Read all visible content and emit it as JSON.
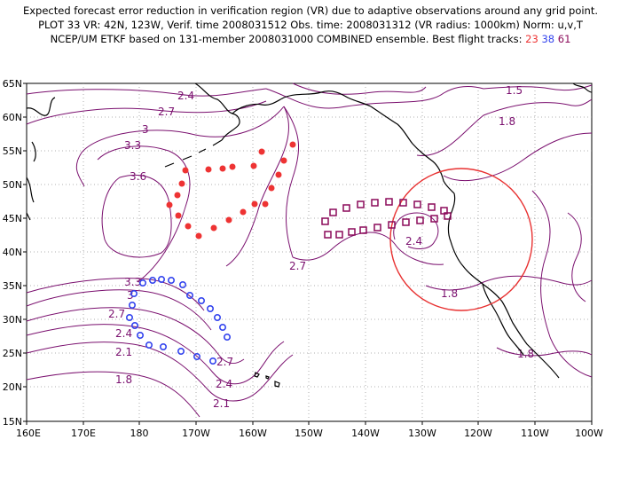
{
  "title": {
    "line1": "Expected forecast error reduction in verification region (VR) due to adaptive observations around any grid point.",
    "line2": "PLOT 33 VR: 42N, 123W, Verif. time 2008031512 Obs. time: 2008031312 (VR radius: 1000km) Norm: u,v,T",
    "line3_prefix": "NCEP/UM ETKF based on 131-member 2008031000 COMBINED ensemble.  Best flight tracks:",
    "track_a": "23",
    "track_b": "38",
    "track_c": "61"
  },
  "axes": {
    "lat_labels": [
      "65N",
      "60N",
      "55N",
      "50N",
      "45N",
      "40N",
      "35N",
      "30N",
      "25N",
      "20N",
      "15N"
    ],
    "lon_labels": [
      "160E",
      "170E",
      "180",
      "170W",
      "160W",
      "150W",
      "140W",
      "130W",
      "120W",
      "110W",
      "100W"
    ]
  },
  "contour_labels": [
    "2.4",
    "2.7",
    "3",
    "3.3",
    "3.6",
    "1.5",
    "1.8",
    "3.3",
    "3",
    "2.7",
    "2.4",
    "2.1",
    "1.8",
    "2.7",
    "2.4",
    "2.1",
    "2.7",
    "2.4",
    "1.8",
    "1.8"
  ],
  "colors": {
    "contour": "#7a0f6e",
    "track_a": "#ee3333",
    "track_b": "#3344ee",
    "track_c": "#8b0a5a",
    "vr_circle": "#e83030",
    "coast": "#000000"
  },
  "verification_region": {
    "lat": 42,
    "lon": -123,
    "radius_km": 1000
  }
}
